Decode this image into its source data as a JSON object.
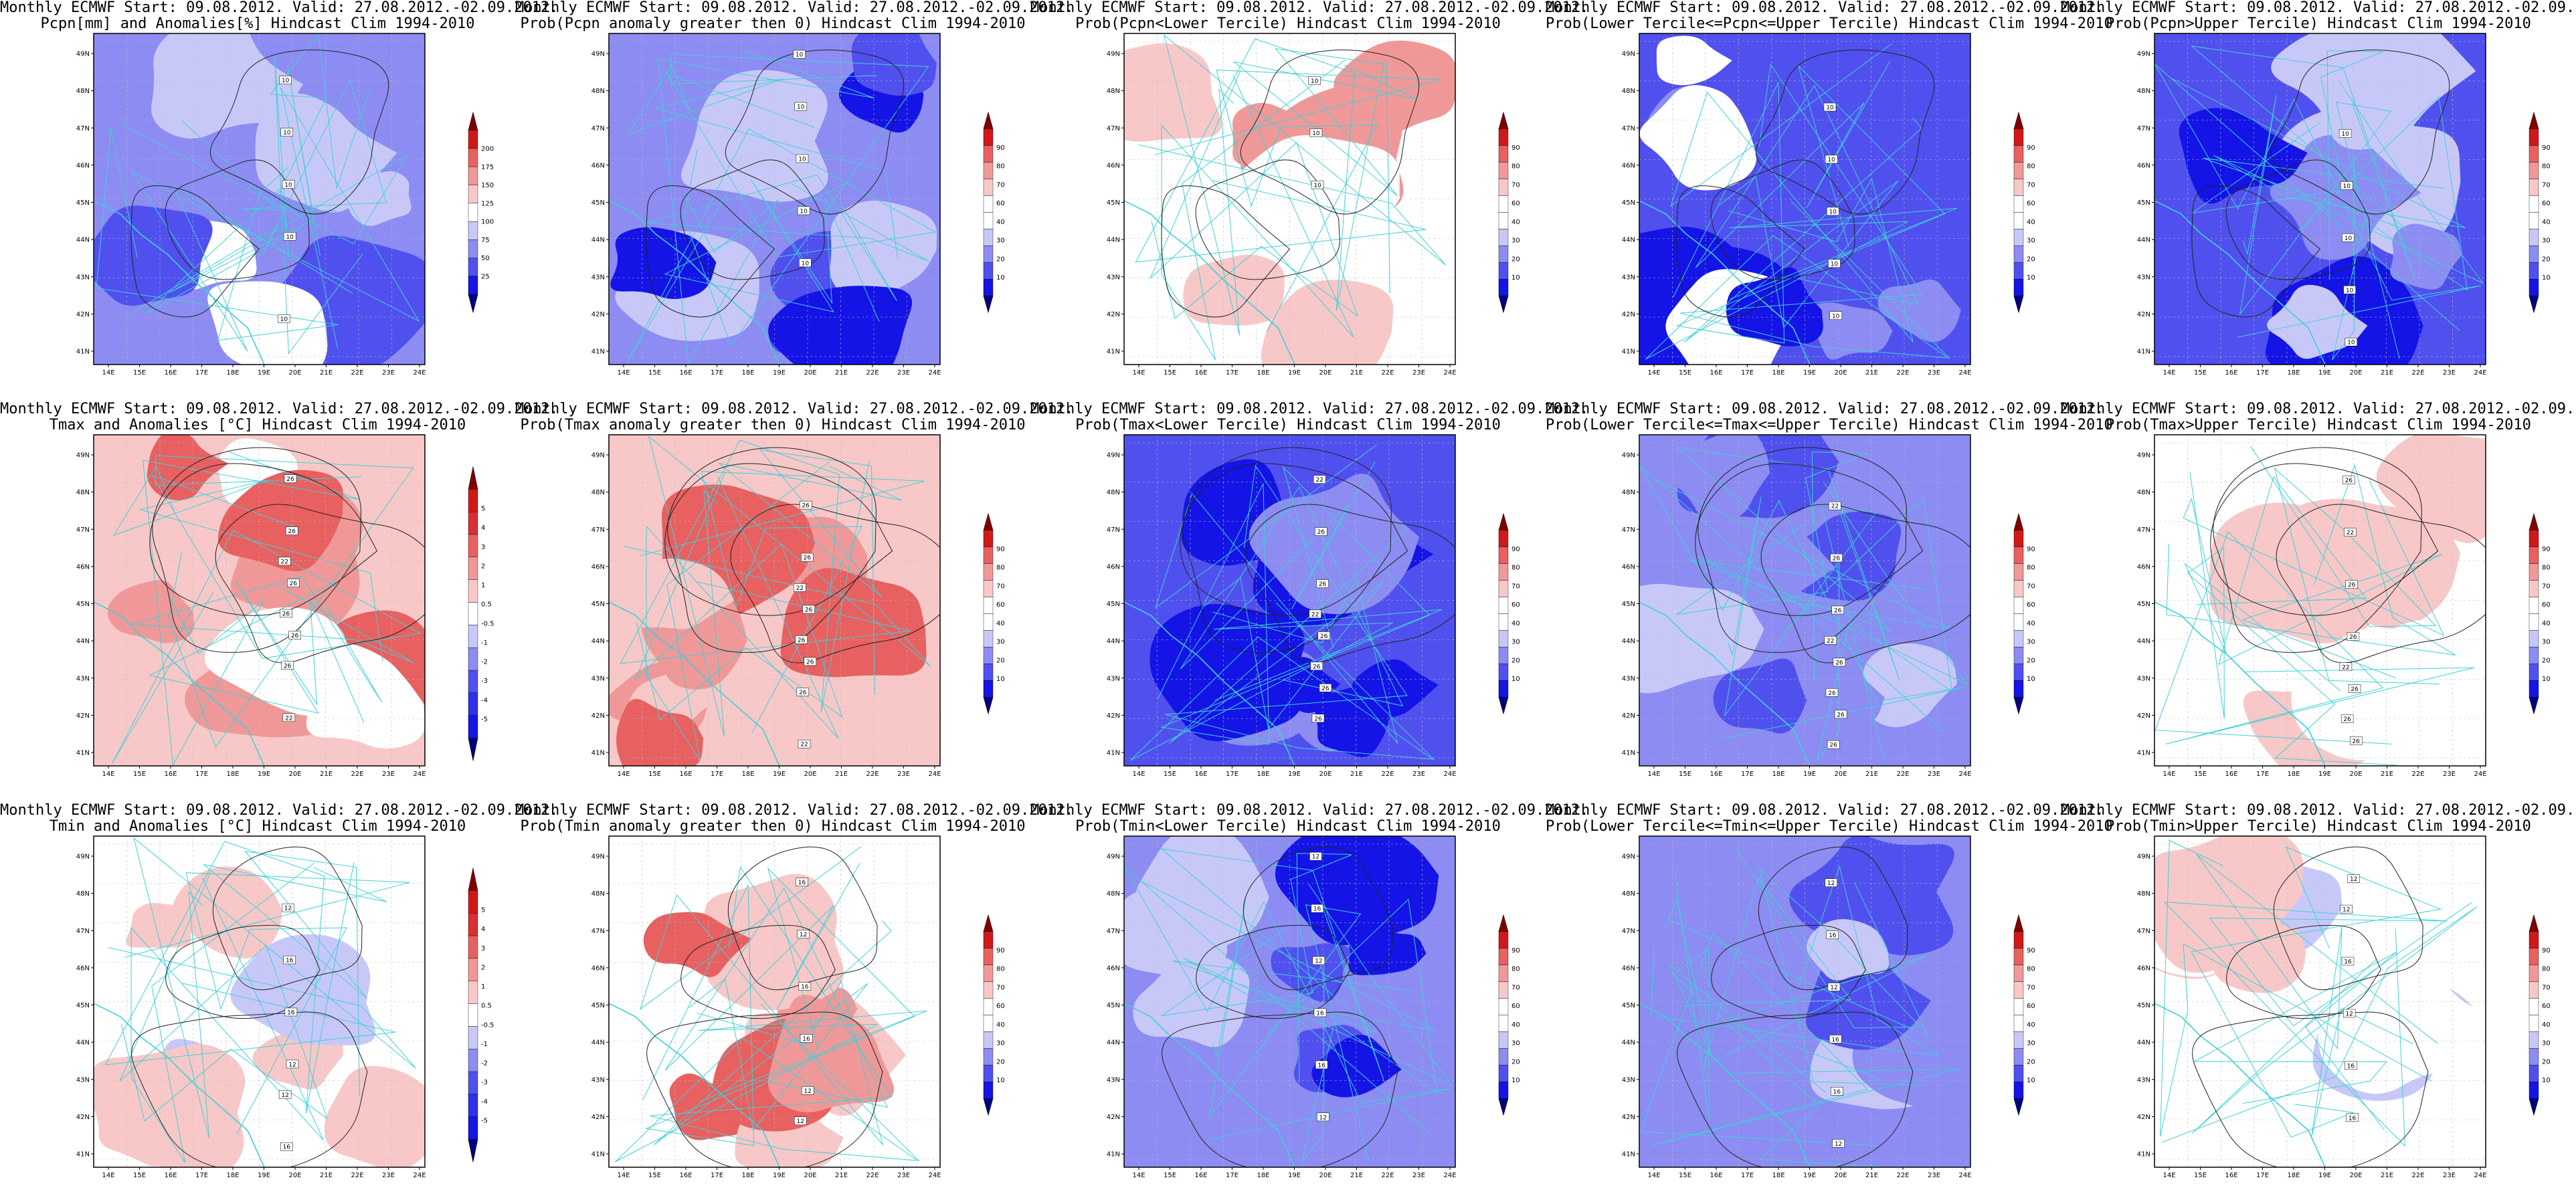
{
  "common": {
    "header": "Monthly ECMWF Start: 09.08.2012. Valid: 27.08.2012.-02.09.2012.",
    "clim": "Hindcast Clim 1994-2010",
    "lon_ticks": [
      "14E",
      "15E",
      "16E",
      "17E",
      "18E",
      "19E",
      "20E",
      "21E",
      "22E",
      "23E",
      "24E"
    ],
    "lat_ticks": [
      "49N",
      "48N",
      "47N",
      "46N",
      "45N",
      "44N",
      "43N",
      "42N",
      "41N"
    ]
  },
  "colors": {
    "coast": "#3fd0d8",
    "contour": "#222222",
    "prob_scale": [
      "#00007f",
      "#1414e6",
      "#5050ee",
      "#8c8cf2",
      "#c8c8f8",
      "#ffffff",
      "#ffffff",
      "#f8c8c8",
      "#f09898",
      "#e86060",
      "#d01818",
      "#7f0000"
    ],
    "pcpn_scale": [
      "#00007f",
      "#1414e6",
      "#5050ee",
      "#8c8cf2",
      "#c8c8f8",
      "#ffffff",
      "#f8c8c8",
      "#f09898",
      "#e86060",
      "#d01818",
      "#7f0000"
    ],
    "temp_scale": [
      "#00007f",
      "#1414e6",
      "#3030ea",
      "#5050ee",
      "#8c8cf2",
      "#c8c8f8",
      "#ffffff",
      "#f8c8c8",
      "#f09898",
      "#e86060",
      "#d83030",
      "#d01818",
      "#7f0000"
    ]
  },
  "colorbars": {
    "prob": [
      "10",
      "20",
      "30",
      "40",
      "60",
      "70",
      "80",
      "90"
    ],
    "pcpn": [
      "25",
      "50",
      "75",
      "100",
      "125",
      "150",
      "175",
      "200"
    ],
    "temp": [
      "-5",
      "-4",
      "-3",
      "-2",
      "-1",
      "-0.5",
      "0.5",
      "1",
      "2",
      "3",
      "4",
      "5"
    ]
  },
  "rows": [
    {
      "variable": "Pcpn",
      "panels": [
        {
          "subtitle": "Pcpn[mm] and Anomalies[%]",
          "scale": "pcpn",
          "contours": [
            "10",
            "10",
            "10",
            "10",
            "10"
          ]
        },
        {
          "subtitle": "Prob(Pcpn anomaly greater then 0)",
          "scale": "prob",
          "contours": [
            "10",
            "10",
            "10",
            "10",
            "10"
          ]
        },
        {
          "subtitle": "Prob(Pcpn<Lower Tercile)",
          "scale": "prob",
          "contours": [
            "10",
            "10",
            "10"
          ]
        },
        {
          "subtitle": "Prob(Lower Tercile<=Pcpn<=Upper Tercile)",
          "scale": "prob",
          "contours": [
            "10",
            "10",
            "10",
            "10",
            "10"
          ]
        },
        {
          "subtitle": "Prob(Pcpn>Upper Tercile)",
          "scale": "prob",
          "contours": [
            "10",
            "10",
            "10",
            "10",
            "10"
          ]
        }
      ]
    },
    {
      "variable": "Tmax",
      "panels": [
        {
          "subtitle": "Tmax and Anomalies [°C]",
          "scale": "temp",
          "contours": [
            "22",
            "26",
            "26",
            "22",
            "26",
            "26",
            "26",
            "26"
          ]
        },
        {
          "subtitle": "Prob(Tmax anomaly greater then 0)",
          "scale": "prob",
          "contours": [
            "22",
            "26",
            "26",
            "22",
            "26",
            "26",
            "26",
            "26"
          ]
        },
        {
          "subtitle": "Prob(Tmax<Lower Tercile)",
          "scale": "prob",
          "contours": [
            "22",
            "26",
            "26",
            "22",
            "26",
            "26",
            "26",
            "26"
          ]
        },
        {
          "subtitle": "Prob(Lower Tercile<=Tmax<=Upper Tercile)",
          "scale": "prob",
          "contours": [
            "22",
            "26",
            "26",
            "22",
            "26",
            "26",
            "26",
            "26"
          ]
        },
        {
          "subtitle": "Prob(Tmax>Upper Tercile)",
          "scale": "prob",
          "contours": [
            "22",
            "26",
            "26",
            "22",
            "26",
            "26",
            "26",
            "26"
          ]
        }
      ]
    },
    {
      "variable": "Tmin",
      "panels": [
        {
          "subtitle": "Tmin and Anomalies [°C]",
          "scale": "temp",
          "contours": [
            "12",
            "16",
            "12",
            "16",
            "16",
            "12"
          ]
        },
        {
          "subtitle": "Prob(Tmin anomaly greater then 0)",
          "scale": "prob",
          "contours": [
            "12",
            "16",
            "12",
            "16",
            "16",
            "12"
          ]
        },
        {
          "subtitle": "Prob(Tmin<Lower Tercile)",
          "scale": "prob",
          "contours": [
            "12",
            "16",
            "12",
            "16",
            "16",
            "12"
          ]
        },
        {
          "subtitle": "Prob(Lower Tercile<=Tmin<=Upper Tercile)",
          "scale": "prob",
          "contours": [
            "12",
            "16",
            "12",
            "16",
            "16",
            "12"
          ]
        },
        {
          "subtitle": "Prob(Tmin>Upper Tercile)",
          "scale": "prob",
          "contours": [
            "12",
            "16",
            "12",
            "16",
            "16",
            "12"
          ]
        }
      ]
    }
  ]
}
